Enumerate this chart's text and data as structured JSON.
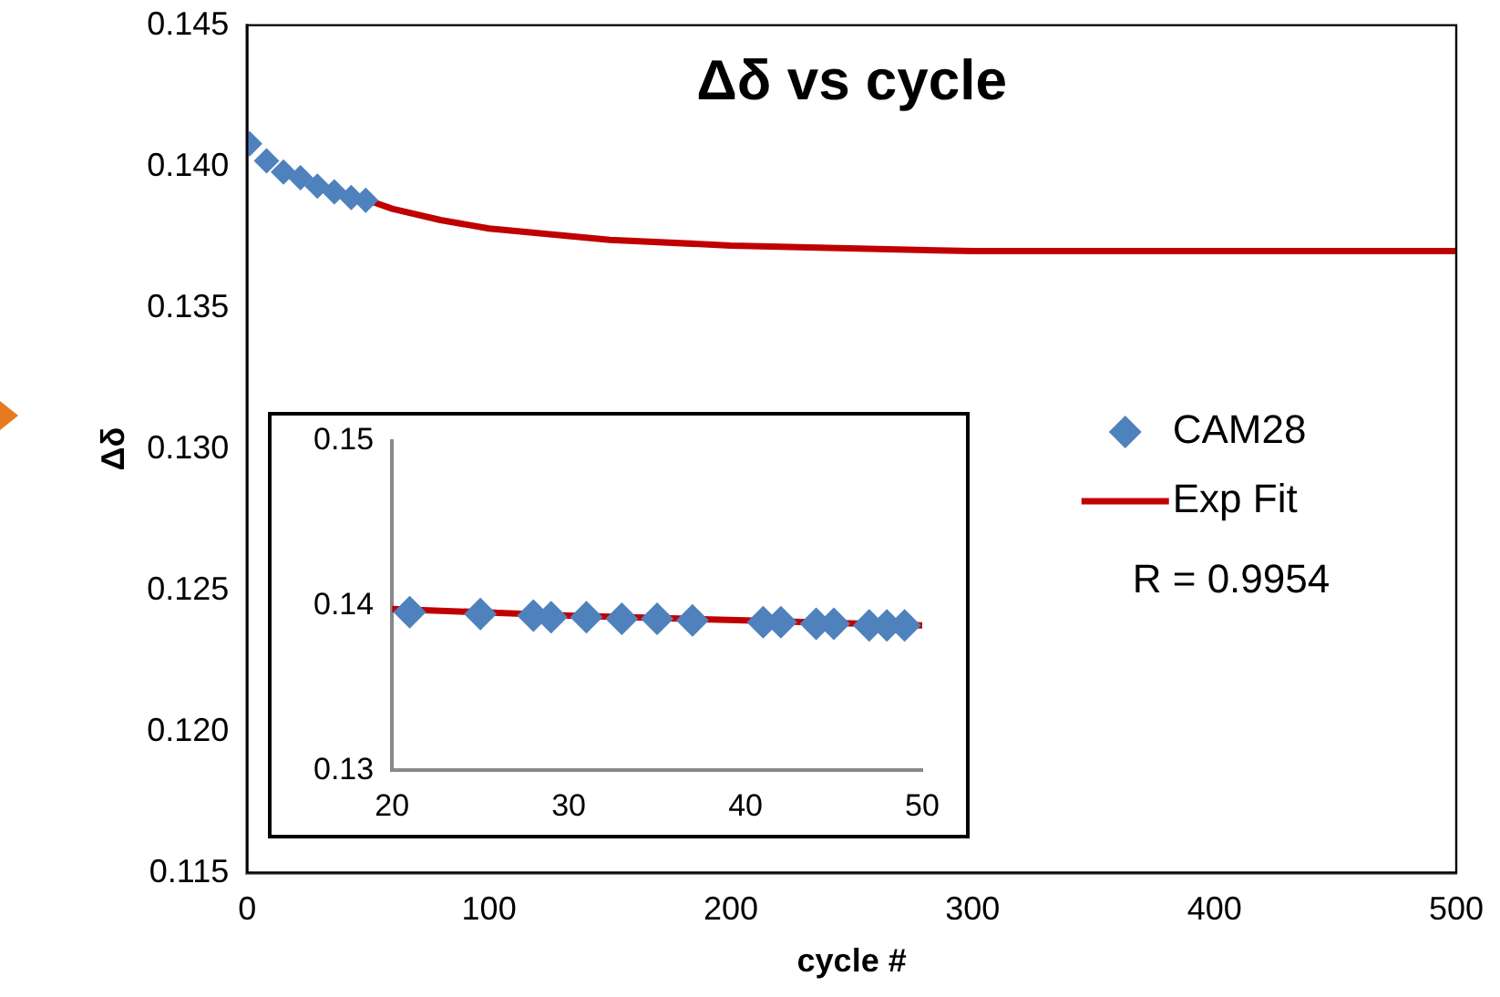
{
  "chart_data": [
    {
      "type": "scatter",
      "title": "Δδ vs cycle",
      "xlabel": "cycle #",
      "ylabel": "Δδ",
      "xlim": [
        0,
        500
      ],
      "xticks": [
        0,
        100,
        200,
        300,
        400,
        500
      ],
      "ylim": [
        0.115,
        0.145
      ],
      "yticks": [
        0.145,
        {
          "value": 0.14,
          "label": "0.140"
        },
        0.135,
        {
          "value": 0.13,
          "label": "0.130"
        },
        0.125,
        {
          "value": 0.12,
          "label": "0.120"
        },
        0.115
      ],
      "grid": false,
      "legend": "right",
      "annotations": [
        "R = 0.9954"
      ],
      "series": [
        {
          "name": "CAM28",
          "type": "scatter",
          "marker": "diamond",
          "color": "#4f81bd",
          "x": [
            1,
            8,
            15,
            22,
            29,
            36,
            43,
            49
          ],
          "values": [
            0.1408,
            0.1402,
            0.1398,
            0.1396,
            0.1393,
            0.1391,
            0.1389,
            0.1388
          ]
        },
        {
          "name": "Exp Fit",
          "type": "line",
          "marker": "none",
          "color": "#c00000",
          "x": [
            50,
            60,
            80,
            100,
            150,
            200,
            300,
            400,
            500
          ],
          "values": [
            0.1388,
            0.1385,
            0.1381,
            0.1378,
            0.1374,
            0.1372,
            0.137,
            0.137,
            0.137
          ]
        }
      ]
    },
    {
      "type": "scatter",
      "xlim": [
        20,
        50
      ],
      "xticks": [
        20,
        30,
        40,
        50
      ],
      "ylim": [
        0.13,
        0.15
      ],
      "yticks": [
        0.15,
        0.14,
        0.13
      ],
      "grid": false,
      "legend": false,
      "series": [
        {
          "type": "scatter",
          "marker": "diamond",
          "color": "#4f81bd",
          "x": [
            21,
            25,
            28,
            29,
            31,
            33,
            35,
            37,
            41,
            42,
            44,
            45,
            47,
            48,
            49
          ],
          "values": [
            0.1396,
            0.1395,
            0.1394,
            0.1393,
            0.1393,
            0.1392,
            0.1392,
            0.1391,
            0.139,
            0.139,
            0.1389,
            0.1389,
            0.1388,
            0.1388,
            0.1388
          ]
        },
        {
          "type": "line",
          "marker": "none",
          "color": "#c00000",
          "x": [
            20,
            30,
            40,
            50
          ],
          "values": [
            0.1398,
            0.1394,
            0.1391,
            0.1388
          ]
        }
      ]
    }
  ]
}
